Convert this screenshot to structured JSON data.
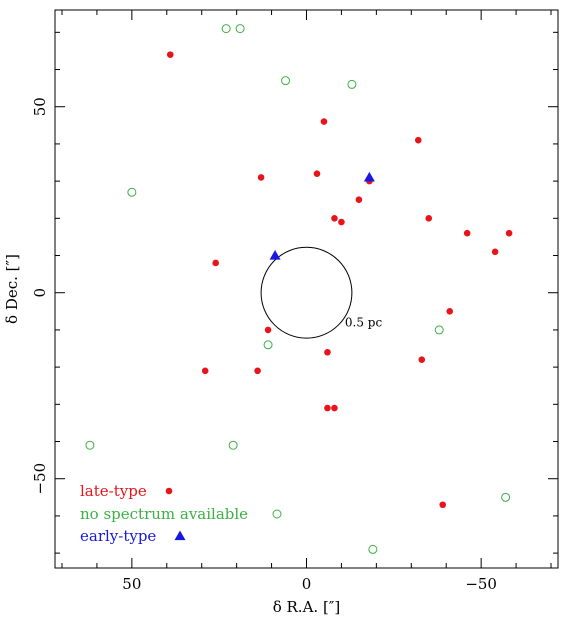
{
  "chart_data": {
    "type": "scatter",
    "xlabel": "δ R.A. [″]",
    "ylabel": "δ Dec. [″]",
    "xlim": [
      72,
      -72
    ],
    "ylim": [
      -74,
      76
    ],
    "x_ticks": [
      50,
      0,
      -50
    ],
    "x_tick_labels": [
      "50",
      "0",
      "−50"
    ],
    "y_ticks": [
      50,
      0,
      -50
    ],
    "y_tick_labels": [
      "50",
      "0",
      "−50"
    ],
    "grid": false,
    "legend_position": "bottom-left",
    "colors": {
      "late": "#e8141a",
      "nospec": "#3cb043",
      "early": "#1717e0"
    },
    "series": [
      {
        "name": "late-type",
        "marker": "filled-circle",
        "points": [
          [
            39,
            64
          ],
          [
            -5,
            46
          ],
          [
            -32,
            41
          ],
          [
            -3,
            32
          ],
          [
            13,
            31
          ],
          [
            -15,
            25
          ],
          [
            -18,
            30
          ],
          [
            -8,
            20
          ],
          [
            -10,
            19
          ],
          [
            -35,
            20
          ],
          [
            -46,
            16
          ],
          [
            -58,
            16
          ],
          [
            -54,
            11
          ],
          [
            26,
            8
          ],
          [
            11,
            -10
          ],
          [
            -41,
            -5
          ],
          [
            -6,
            -16
          ],
          [
            -33,
            -18
          ],
          [
            29,
            -21
          ],
          [
            14,
            -21
          ],
          [
            -6,
            -31
          ],
          [
            -8,
            -31
          ],
          [
            -39,
            -57
          ]
        ]
      },
      {
        "name": "no spectrum available",
        "marker": "open-circle",
        "points": [
          [
            23,
            71
          ],
          [
            19,
            71
          ],
          [
            6,
            57
          ],
          [
            -13,
            56
          ],
          [
            50,
            27
          ],
          [
            11,
            -14
          ],
          [
            -38,
            -10
          ],
          [
            62,
            -41
          ],
          [
            21,
            -41
          ],
          [
            -57,
            -55
          ],
          [
            -19,
            -69
          ]
        ]
      },
      {
        "name": "early-type",
        "marker": "filled-triangle",
        "points": [
          [
            -18,
            31
          ],
          [
            9,
            10
          ]
        ]
      }
    ],
    "circle": {
      "x": 0,
      "y": 0,
      "r": 13,
      "label": "0.5 pc"
    }
  }
}
